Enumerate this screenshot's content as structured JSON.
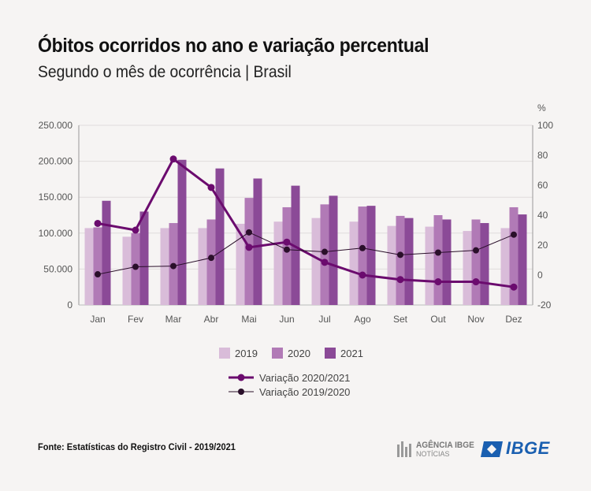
{
  "header": {
    "title": "Óbitos ocorridos no ano e variação percentual",
    "subtitle": "Segundo o mês de ocorrência | Brasil"
  },
  "footer": {
    "source": "Fonte: Estatísticas do Registro Civil - 2019/2021",
    "agencia_line1": "AGÊNCIA IBGE",
    "agencia_line2": "NOTÍCIAS",
    "ibge_logo": "IBGE"
  },
  "colors": {
    "c2019": "#d9bcd9",
    "c2020": "#b17ab6",
    "c2021": "#8b4a97",
    "line_2020_2021": "#6b0b6e",
    "line_2019_2020": "#2a0f2a",
    "grid": "#e0dcdc",
    "axis_text": "#555555"
  },
  "chart_data": {
    "type": "bar",
    "categories": [
      "Jan",
      "Fev",
      "Mar",
      "Abr",
      "Mai",
      "Jun",
      "Jul",
      "Ago",
      "Set",
      "Out",
      "Nov",
      "Dez"
    ],
    "left_axis": {
      "ylim": [
        0,
        250000
      ],
      "ticks": [
        0,
        50000,
        100000,
        150000,
        200000,
        250000
      ],
      "tick_labels": [
        "0",
        "50.000",
        "100.000",
        "150.000",
        "200.000",
        "250.000"
      ]
    },
    "right_axis": {
      "label": "%",
      "ylim": [
        -20,
        100
      ],
      "ticks": [
        -20,
        0,
        20,
        40,
        60,
        80,
        100
      ],
      "tick_labels": [
        "-20",
        "0",
        "20",
        "40",
        "60",
        "80",
        "100"
      ]
    },
    "grid": true,
    "legend_placement": "bottom",
    "series": [
      {
        "name": "2019",
        "type": "bar",
        "values": [
          107000,
          95000,
          107000,
          107000,
          113000,
          116000,
          121000,
          116000,
          110000,
          109000,
          103000,
          107000
        ]
      },
      {
        "name": "2020",
        "type": "bar",
        "values": [
          108000,
          100000,
          114000,
          119000,
          149000,
          136000,
          140000,
          137000,
          124000,
          125000,
          119000,
          136000
        ]
      },
      {
        "name": "2021",
        "type": "bar",
        "values": [
          145000,
          130000,
          202000,
          190000,
          176000,
          166000,
          152000,
          138000,
          121000,
          119000,
          114000,
          126000
        ]
      },
      {
        "name": "Variação 2020/2021",
        "type": "line",
        "axis": "right",
        "values": [
          34.5,
          30,
          77.5,
          58.5,
          18.5,
          22,
          8.5,
          0,
          -3,
          -4.5,
          -4.5,
          -8
        ]
      },
      {
        "name": "Variação 2019/2020",
        "type": "line",
        "axis": "right",
        "values": [
          0.5,
          5.5,
          6,
          11.5,
          28.5,
          17,
          15.5,
          18,
          13.5,
          15,
          16.5,
          27
        ]
      }
    ]
  }
}
